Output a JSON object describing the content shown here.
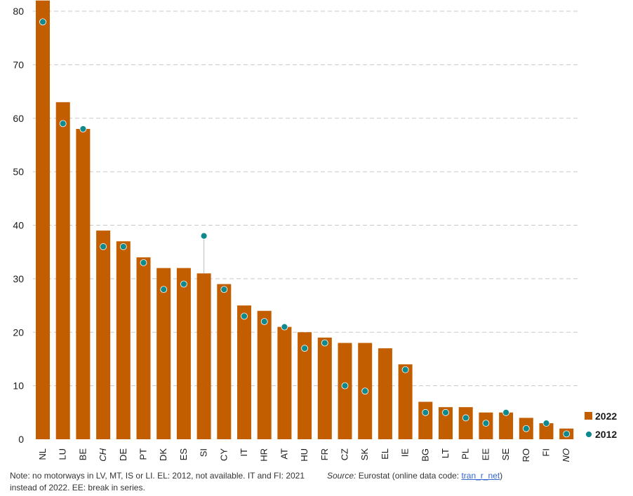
{
  "chart_data": {
    "type": "bar",
    "categories": [
      "NL",
      "LU",
      "BE",
      "CH",
      "DE",
      "PT",
      "DK",
      "ES",
      "SI",
      "CY",
      "IT",
      "HR",
      "AT",
      "HU",
      "FR",
      "CZ",
      "SK",
      "EL",
      "IE",
      "BG",
      "LT",
      "PL",
      "EE",
      "SE",
      "RO",
      "FI",
      "NO"
    ],
    "italic_categories": [
      "CH",
      "NO"
    ],
    "series": [
      {
        "name": "2022",
        "type": "bar",
        "color": "#c25e00",
        "values": [
          82,
          63,
          58,
          39,
          37,
          34,
          32,
          32,
          31,
          29,
          25,
          24,
          21,
          20,
          19,
          18,
          18,
          17,
          14,
          7,
          6,
          6,
          5,
          5,
          4,
          3,
          2
        ]
      },
      {
        "name": "2012",
        "type": "scatter",
        "color": "#0e8a8f",
        "values": [
          78,
          59,
          58,
          36,
          36,
          33,
          28,
          29,
          38,
          28,
          23,
          22,
          21,
          17,
          18,
          10,
          9,
          null,
          13,
          5,
          5,
          4,
          3,
          5,
          2,
          3,
          1
        ]
      }
    ],
    "yticks": [
      0,
      10,
      20,
      30,
      40,
      50,
      60,
      70,
      80
    ],
    "ylim": [
      0,
      80
    ],
    "grid": true,
    "legend": "bottom-right",
    "title": "",
    "xlabel": "",
    "ylabel": ""
  },
  "note": "Note: no motorways in LV, MT, IS or LI. EL: 2012, not available. IT and FI: 2021 instead of 2022. EE: break in series.",
  "source": {
    "label": "Source:",
    "text": " Eurostat (online data code: ",
    "code": "tran_r_net",
    "end": ")"
  }
}
